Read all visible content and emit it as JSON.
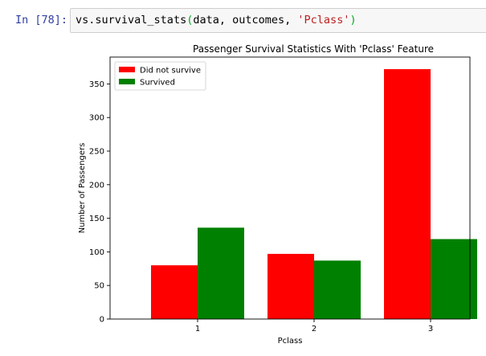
{
  "cell": {
    "prompt": "In [78]:",
    "code": {
      "module": "vs",
      "dot": ".",
      "function": "survival_stats",
      "open_paren": "(",
      "arg1": "data",
      "sep1": ", ",
      "arg2": "outcomes",
      "sep2": ", ",
      "arg3": "'Pclass'",
      "close_paren": ")"
    }
  },
  "chart_data": {
    "type": "bar",
    "title": "Passenger Survival Statistics With 'Pclass' Feature",
    "xlabel": "Pclass",
    "ylabel": "Number of Passengers",
    "categories": [
      "1",
      "2",
      "3"
    ],
    "series": [
      {
        "name": "Did not survive",
        "color": "#ff0000",
        "values": [
          80,
          97,
          372
        ]
      },
      {
        "name": "Survived",
        "color": "#008000",
        "values": [
          136,
          87,
          119
        ]
      }
    ],
    "ylim": [
      0,
      390
    ],
    "yticks": [
      0,
      50,
      100,
      150,
      200,
      250,
      300,
      350
    ],
    "legend_position": "top-left",
    "grid": false
  }
}
